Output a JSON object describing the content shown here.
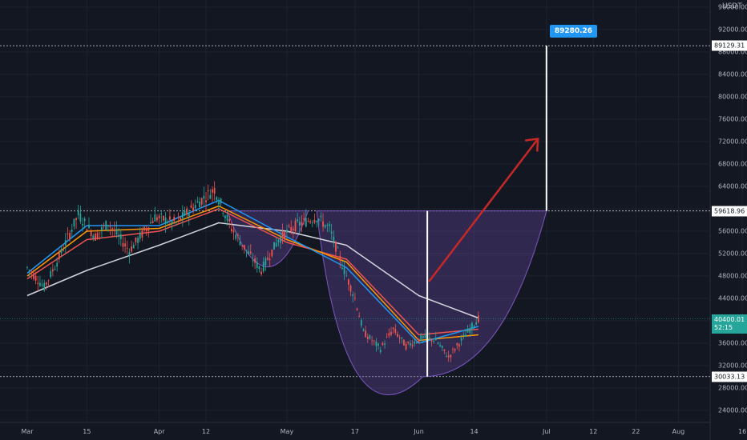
{
  "chart_data": {
    "type": "candlestick",
    "currency": "USDT",
    "x_ticks": [
      "Mar",
      "15",
      "Apr",
      "12",
      "May",
      "17",
      "Jun",
      "14",
      "Jul",
      "12",
      "22",
      "Aug",
      "16"
    ],
    "y_ticks": [
      "96000.00",
      "92000.00",
      "88000.00",
      "84000.00",
      "80000.00",
      "76000.00",
      "72000.00",
      "68000.00",
      "64000.00",
      "60000.00",
      "56000.00",
      "52000.00",
      "48000.00",
      "44000.00",
      "40000.00",
      "36000.00",
      "32000.00",
      "28000.00",
      "24000.00"
    ],
    "y_tick_values": [
      96000,
      92000,
      88000,
      84000,
      80000,
      76000,
      72000,
      68000,
      64000,
      60000,
      56000,
      52000,
      48000,
      44000,
      40000,
      36000,
      32000,
      28000,
      24000
    ],
    "ylim": [
      22000,
      98000
    ],
    "horizontal_levels": [
      {
        "label": "89129.31",
        "value": 89129.31,
        "style": "white"
      },
      {
        "label": "59618.96",
        "value": 59618.96,
        "style": "white"
      },
      {
        "label": "30033.13",
        "value": 30033.13,
        "style": "white"
      }
    ],
    "current_price": {
      "value": 40400.01,
      "label": "40400.01",
      "countdown": "52:15"
    },
    "target_label": "89280.26",
    "price_path": [
      {
        "x": "Mar 1",
        "y": 49500
      },
      {
        "x": "Mar 5",
        "y": 46000
      },
      {
        "x": "Mar 8",
        "y": 50500
      },
      {
        "x": "Mar 13",
        "y": 59000
      },
      {
        "x": "Mar 17",
        "y": 55000
      },
      {
        "x": "Mar 20",
        "y": 57500
      },
      {
        "x": "Mar 25",
        "y": 52500
      },
      {
        "x": "Mar 31",
        "y": 58500
      },
      {
        "x": "Apr 5",
        "y": 57500
      },
      {
        "x": "Apr 10",
        "y": 61000
      },
      {
        "x": "Apr 14",
        "y": 63500
      },
      {
        "x": "Apr 18",
        "y": 56500
      },
      {
        "x": "Apr 22",
        "y": 52000
      },
      {
        "x": "Apr 25",
        "y": 49000
      },
      {
        "x": "Apr 29",
        "y": 54500
      },
      {
        "x": "May 3",
        "y": 57000
      },
      {
        "x": "May 8",
        "y": 58500
      },
      {
        "x": "May 11",
        "y": 56500
      },
      {
        "x": "May 14",
        "y": 50000
      },
      {
        "x": "May 17",
        "y": 44000
      },
      {
        "x": "May 19",
        "y": 38000
      },
      {
        "x": "May 23",
        "y": 35000
      },
      {
        "x": "May 26",
        "y": 38500
      },
      {
        "x": "May 29",
        "y": 35500
      },
      {
        "x": "Jun 2",
        "y": 37000
      },
      {
        "x": "Jun 5",
        "y": 36500
      },
      {
        "x": "Jun 8",
        "y": 33500
      },
      {
        "x": "Jun 11",
        "y": 36500
      },
      {
        "x": "Jun 14",
        "y": 39500
      },
      {
        "x": "Jun 15",
        "y": 40400
      }
    ],
    "moving_averages": [
      {
        "color": "#d1d4dc",
        "values": [
          {
            "x": "Mar 1",
            "y": 44500
          },
          {
            "x": "Mar 15",
            "y": 49000
          },
          {
            "x": "Apr 1",
            "y": 53500
          },
          {
            "x": "Apr 15",
            "y": 57500
          },
          {
            "x": "May 1",
            "y": 56000
          },
          {
            "x": "May 15",
            "y": 53500
          },
          {
            "x": "Jun 1",
            "y": 44500
          },
          {
            "x": "Jun 15",
            "y": 40500
          }
        ]
      },
      {
        "color": "#ef5350",
        "values": [
          {
            "x": "Mar 1",
            "y": 47500
          },
          {
            "x": "Mar 15",
            "y": 54500
          },
          {
            "x": "Apr 1",
            "y": 56000
          },
          {
            "x": "Apr 15",
            "y": 60000
          },
          {
            "x": "May 1",
            "y": 54000
          },
          {
            "x": "May 15",
            "y": 51000
          },
          {
            "x": "Jun 1",
            "y": 37500
          },
          {
            "x": "Jun 15",
            "y": 38500
          }
        ]
      },
      {
        "color": "#ff9800",
        "values": [
          {
            "x": "Mar 1",
            "y": 48000
          },
          {
            "x": "Mar 15",
            "y": 56000
          },
          {
            "x": "Apr 1",
            "y": 56500
          },
          {
            "x": "Apr 15",
            "y": 60500
          },
          {
            "x": "May 1",
            "y": 54500
          },
          {
            "x": "May 15",
            "y": 50500
          },
          {
            "x": "Jun 1",
            "y": 36500
          },
          {
            "x": "Jun 15",
            "y": 37500
          }
        ]
      },
      {
        "color": "#2196f3",
        "values": [
          {
            "x": "Mar 1",
            "y": 48500
          },
          {
            "x": "Mar 15",
            "y": 57000
          },
          {
            "x": "Apr 1",
            "y": 57000
          },
          {
            "x": "Apr 15",
            "y": 61500
          },
          {
            "x": "May 1",
            "y": 55000
          },
          {
            "x": "May 15",
            "y": 49500
          },
          {
            "x": "Jun 1",
            "y": 36000
          },
          {
            "x": "Jun 15",
            "y": 39000
          }
        ]
      }
    ],
    "grid": true,
    "colors": {
      "up": "#26a69a",
      "down": "#ef5350",
      "pattern_fill": "#7e57c2",
      "arrow": "#c62828",
      "background": "#131722"
    }
  }
}
